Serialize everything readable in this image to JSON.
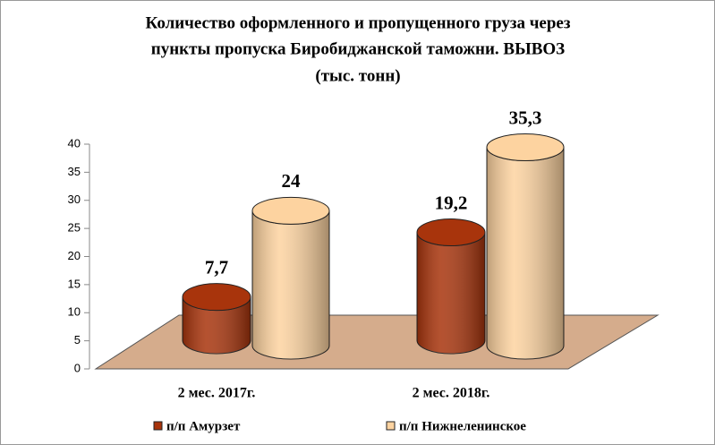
{
  "chart_data": {
    "type": "cylinder-bar",
    "title": [
      "Количество оформленного и пропущенного груза через",
      "пункты пропуска Биробиджанской таможни. ВЫВОЗ"
    ],
    "subtitle": "(тыс. тонн)",
    "categories": [
      "2 мес. 2017г.",
      "2 мес. 2018г."
    ],
    "series": [
      {
        "name": "п/п Амурзет",
        "color": "#a8340c",
        "values": [
          7.7,
          19.2
        ],
        "value_labels": [
          "7,7",
          "19,2"
        ]
      },
      {
        "name": "п/п Нижнеленинское",
        "color": "#fdd3a0",
        "values": [
          24,
          35.3
        ],
        "value_labels": [
          "24",
          "35,3"
        ]
      }
    ],
    "ylim": [
      0,
      40
    ],
    "yticks": [
      0,
      5,
      10,
      15,
      20,
      25,
      30,
      35,
      40
    ],
    "floor_color": "#d5ac8c"
  }
}
